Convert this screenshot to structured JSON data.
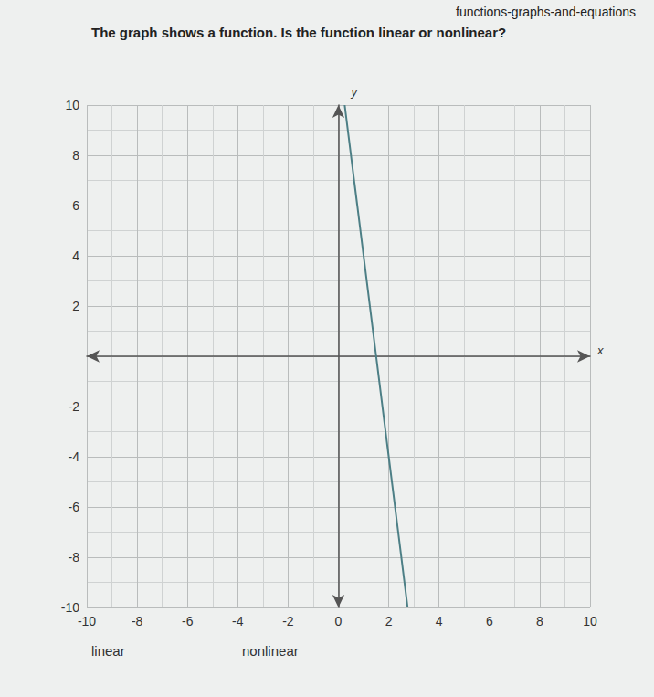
{
  "chart_data": {
    "type": "line",
    "header": "functions-graphs-and-equations",
    "title": "The graph shows a function. Is the function linear or nonlinear?",
    "x_label": "x",
    "y_label": "y",
    "x": [
      0.25,
      2.75
    ],
    "values": [
      10,
      -10
    ],
    "color": "#4d7f86",
    "xlim": [
      -10,
      10
    ],
    "ylim": [
      -10,
      10
    ],
    "xticks": [
      -10,
      -8,
      -6,
      -4,
      -2,
      0,
      2,
      4,
      6,
      8,
      10
    ],
    "yticks": [
      -10,
      -8,
      -6,
      -4,
      -2,
      2,
      4,
      6,
      8,
      10
    ],
    "grid": true,
    "options": [
      "linear",
      "nonlinear"
    ]
  }
}
